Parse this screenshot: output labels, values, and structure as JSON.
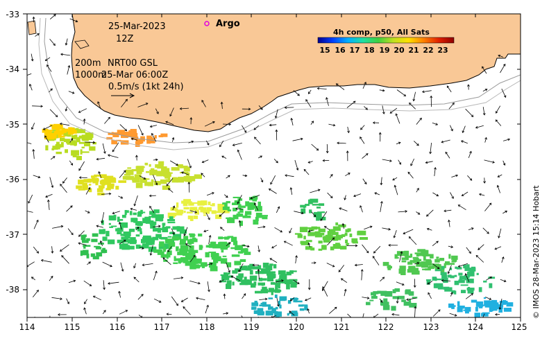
{
  "map": {
    "date": "25-Mar-2023",
    "time": "12Z",
    "argo_label": "Argo",
    "contour_200m": "200m",
    "contour_1000m": "1000m",
    "product_line1": "NRT00 GSL",
    "product_line2": "25-Mar 06:00Z",
    "scale_label": "0.5m/s (1kt 24h)",
    "credit": "© IMOS 28-Mar-2023 15:14 Hobart",
    "land_color": "#f9c896"
  },
  "colorbar": {
    "title": "4h comp, p50, All Sats",
    "ticks": [
      "15",
      "16",
      "17",
      "18",
      "19",
      "20",
      "21",
      "22",
      "23"
    ],
    "colors": [
      "#00008f",
      "#0040ff",
      "#00b0ff",
      "#20e0a0",
      "#40d040",
      "#c0e020",
      "#ffe000",
      "#ff8000",
      "#e02000",
      "#8f0000"
    ]
  },
  "axes": {
    "x_ticks": [
      "114",
      "115",
      "116",
      "117",
      "118",
      "119",
      "120",
      "121",
      "122",
      "123",
      "124",
      "125"
    ],
    "y_ticks": [
      "-33",
      "-34",
      "-35",
      "-36",
      "-37",
      "-38"
    ]
  }
}
